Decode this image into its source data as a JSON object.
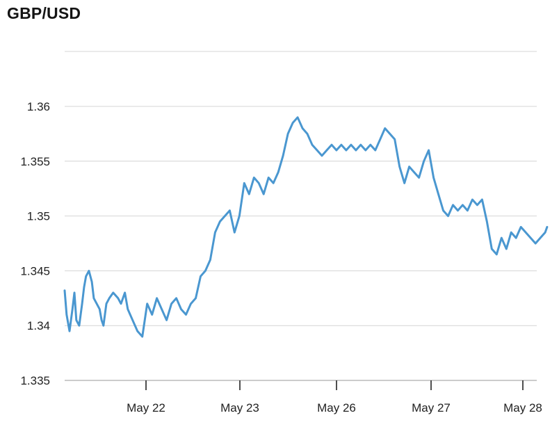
{
  "chart_data": {
    "type": "line",
    "title": "GBP/USD",
    "xlabel": "",
    "ylabel": "",
    "ylim": [
      1.335,
      1.36
    ],
    "yticks": [
      "1.335",
      "1.34",
      "1.345",
      "1.35",
      "1.355",
      "1.36"
    ],
    "xticks": [
      "May 22",
      "May 23",
      "May 26",
      "May 27",
      "May 28"
    ],
    "x_range": [
      0,
      4.97
    ],
    "grid": true,
    "legend": "none",
    "color": "#4a97d0",
    "series": [
      {
        "x": [
          0,
          0.02,
          0.05,
          0.08,
          0.1,
          0.12,
          0.15,
          0.18,
          0.2,
          0.22,
          0.25,
          0.28,
          0.3,
          0.33,
          0.36,
          0.38,
          0.4,
          0.43,
          0.46,
          0.5,
          0.55,
          0.58,
          0.62,
          0.65,
          0.7,
          0.75,
          0.8,
          0.85,
          0.9,
          0.95,
          1.0,
          1.05,
          1.1,
          1.15,
          1.2,
          1.25,
          1.3,
          1.35,
          1.4,
          1.45,
          1.5,
          1.55,
          1.6,
          1.65,
          1.7,
          1.75,
          1.8,
          1.85,
          1.9,
          1.95,
          2.0,
          2.05,
          2.1,
          2.15,
          2.2,
          2.25,
          2.3,
          2.35,
          2.4,
          2.45,
          2.5,
          2.55,
          2.6,
          2.65,
          2.7,
          2.75,
          2.8,
          2.85,
          2.9,
          2.95,
          3.0,
          3.05,
          3.1,
          3.15,
          3.2,
          3.25,
          3.3,
          3.35,
          3.4,
          3.45,
          3.5,
          3.55,
          3.6,
          3.65,
          3.7,
          3.75,
          3.8,
          3.85,
          3.9,
          3.95,
          4.0,
          4.05,
          4.1,
          4.15,
          4.2,
          4.25,
          4.3,
          4.35,
          4.4,
          4.45,
          4.5,
          4.55,
          4.6,
          4.65,
          4.7,
          4.75,
          4.8,
          4.85,
          4.9,
          4.95,
          4.97
        ],
        "values": [
          1.3432,
          1.341,
          1.3395,
          1.3415,
          1.343,
          1.3405,
          1.34,
          1.342,
          1.3435,
          1.3445,
          1.345,
          1.344,
          1.3425,
          1.342,
          1.3415,
          1.3405,
          1.34,
          1.342,
          1.3425,
          1.343,
          1.3425,
          1.342,
          1.343,
          1.3415,
          1.3405,
          1.3395,
          1.339,
          1.342,
          1.341,
          1.3425,
          1.3415,
          1.3405,
          1.342,
          1.3425,
          1.3415,
          1.341,
          1.342,
          1.3425,
          1.3445,
          1.345,
          1.346,
          1.3485,
          1.3495,
          1.35,
          1.3505,
          1.3485,
          1.35,
          1.353,
          1.352,
          1.3535,
          1.353,
          1.352,
          1.3535,
          1.353,
          1.354,
          1.3555,
          1.3575,
          1.3585,
          1.359,
          1.358,
          1.3575,
          1.3565,
          1.356,
          1.3555,
          1.356,
          1.3565,
          1.356,
          1.3565,
          1.356,
          1.3565,
          1.356,
          1.3565,
          1.356,
          1.3565,
          1.356,
          1.357,
          1.358,
          1.3575,
          1.357,
          1.3545,
          1.353,
          1.3545,
          1.354,
          1.3535,
          1.355,
          1.356,
          1.3535,
          1.352,
          1.3505,
          1.35,
          1.351,
          1.3505,
          1.351,
          1.3505,
          1.3515,
          1.351,
          1.3515,
          1.3495,
          1.347,
          1.3465,
          1.348,
          1.347,
          1.3485,
          1.348,
          1.349,
          1.3485,
          1.348,
          1.3475,
          1.348,
          1.3485,
          1.349
        ]
      }
    ]
  }
}
